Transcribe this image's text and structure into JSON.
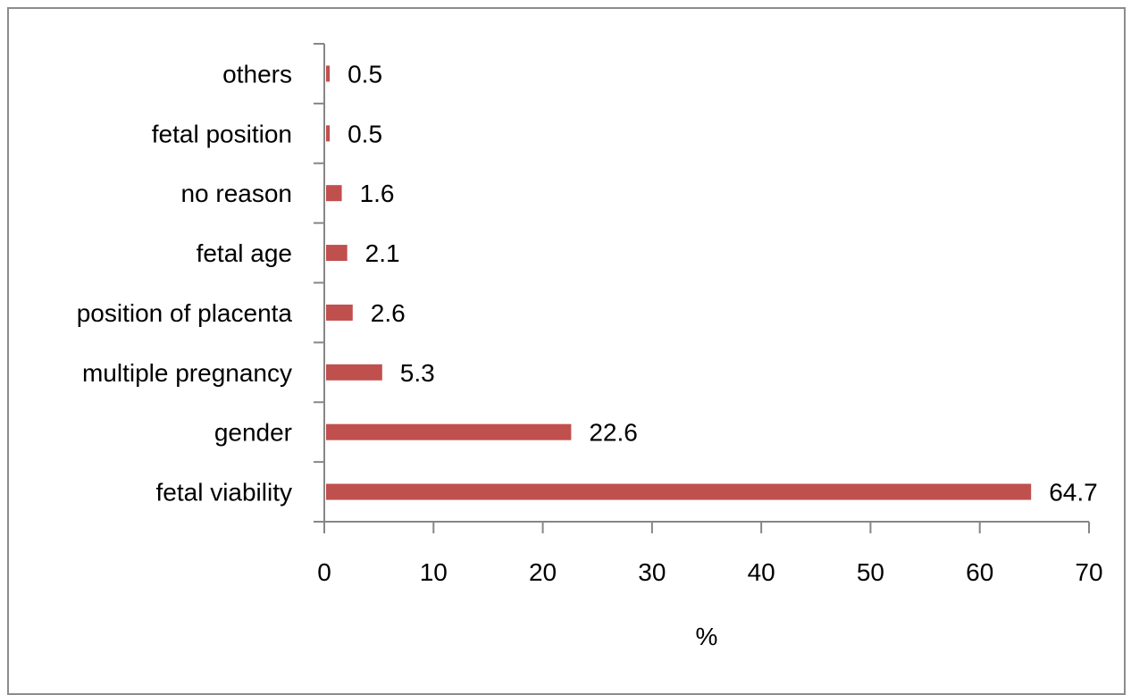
{
  "chart_data": {
    "type": "bar",
    "orientation": "horizontal",
    "categories": [
      "fetal viability",
      "gender",
      "multiple pregnancy",
      "position of placenta",
      "fetal age",
      "no reason",
      "fetal position",
      "others"
    ],
    "values": [
      64.7,
      22.6,
      5.3,
      2.6,
      2.1,
      1.6,
      0.5,
      0.5
    ],
    "value_labels": [
      "64.7",
      "22.6",
      "5.3",
      "2.6",
      "2.1",
      "1.6",
      "0.5",
      "0.5"
    ],
    "xlabel": "%",
    "xlim": [
      0,
      70
    ],
    "xticks": [
      "0",
      "10",
      "20",
      "30",
      "40",
      "50",
      "60",
      "70"
    ],
    "grid": false,
    "bar_color": "#c0504d",
    "axis_color": "#868686"
  }
}
